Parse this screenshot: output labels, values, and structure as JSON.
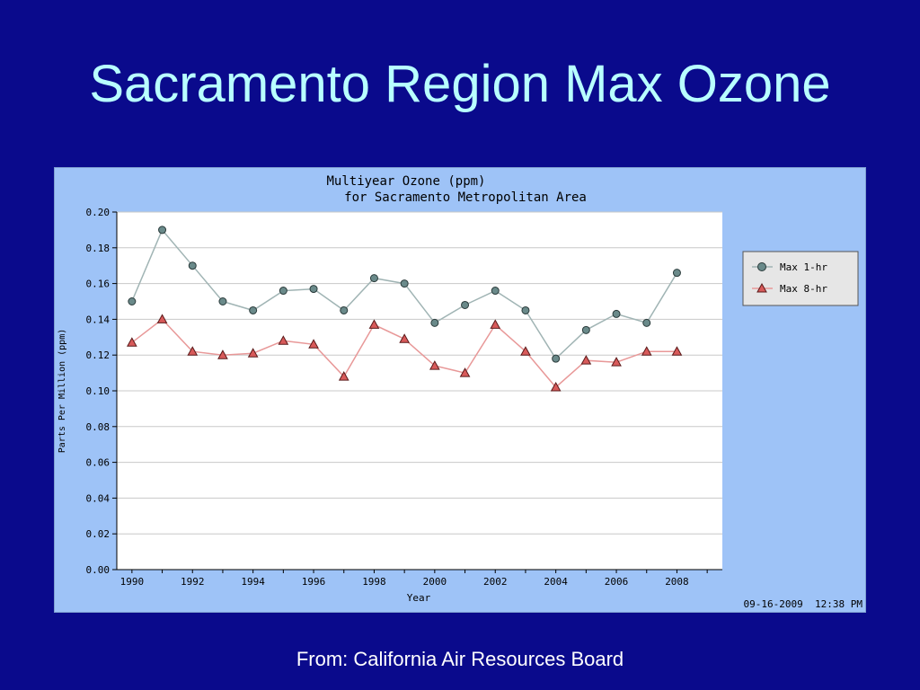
{
  "slide": {
    "title": "Sacramento Region Max Ozone",
    "source": "From:  California Air Resources Board"
  },
  "colors": {
    "background": "#0a0a8c",
    "title": "#b8ffff",
    "panel": "#9ec3f7",
    "plot": "#ffffff",
    "series1_line": "#a0b4b4",
    "series1_marker": "#6a8a8a",
    "series2_line": "#e89898",
    "series2_marker": "#d85a5a"
  },
  "chart_data": {
    "type": "line",
    "title": "Multiyear Ozone (ppm)",
    "subtitle": "for Sacramento Metropolitan Area",
    "xlabel": "Year",
    "ylabel": "Parts Per Million (ppm)",
    "ylim": [
      0,
      0.2
    ],
    "xlim": [
      1989.5,
      2009.5
    ],
    "yticks": [
      "0.00",
      "0.02",
      "0.04",
      "0.06",
      "0.08",
      "0.10",
      "0.12",
      "0.14",
      "0.16",
      "0.18",
      "0.20"
    ],
    "xticks": [
      "1990",
      "1992",
      "1994",
      "1996",
      "1998",
      "2000",
      "2002",
      "2004",
      "2006",
      "2008"
    ],
    "grid": true,
    "legend_position": "right",
    "timestamp": "09-16-2009  12:38 PM",
    "x": [
      1990,
      1991,
      1992,
      1993,
      1994,
      1995,
      1996,
      1997,
      1998,
      1999,
      2000,
      2001,
      2002,
      2003,
      2004,
      2005,
      2006,
      2007,
      2008
    ],
    "series": [
      {
        "name": "Max 1-hr",
        "marker": "circle",
        "values": [
          0.15,
          0.19,
          0.17,
          0.15,
          0.145,
          0.156,
          0.157,
          0.145,
          0.163,
          0.16,
          0.138,
          0.148,
          0.156,
          0.145,
          0.118,
          0.134,
          0.143,
          0.138,
          0.166
        ]
      },
      {
        "name": "Max 8-hr",
        "marker": "triangle",
        "values": [
          0.127,
          0.14,
          0.122,
          0.12,
          0.121,
          0.128,
          0.126,
          0.108,
          0.137,
          0.129,
          0.114,
          0.11,
          0.137,
          0.122,
          0.102,
          0.117,
          0.116,
          0.122,
          0.122
        ]
      }
    ]
  }
}
